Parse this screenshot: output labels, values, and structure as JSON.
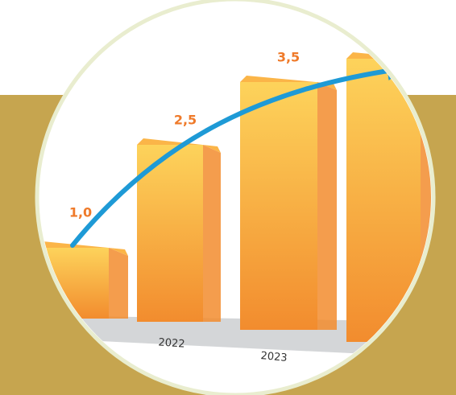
{
  "chart_data": {
    "type": "bar",
    "categories": [
      null,
      "2022",
      "2023",
      null
    ],
    "values": [
      1.0,
      2.5,
      3.5,
      4.0
    ],
    "value_labels": [
      "1,0",
      "2,5",
      "3,5",
      null
    ],
    "color": "#f28c2e"
  }
}
